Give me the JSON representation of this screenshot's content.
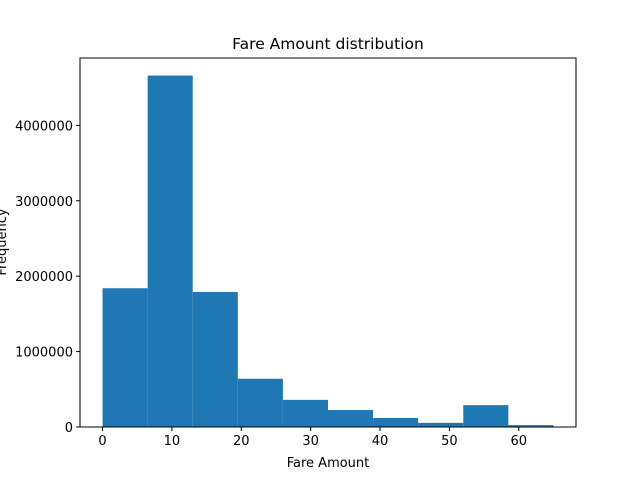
{
  "chart_data": {
    "type": "bar",
    "title": "Fare Amount distribution",
    "xlabel": "Fare Amount",
    "ylabel": "Frequency",
    "bins": [
      {
        "start": 0.0,
        "end": 6.5,
        "value": 1840000
      },
      {
        "start": 6.5,
        "end": 13.0,
        "value": 4660000
      },
      {
        "start": 13.0,
        "end": 19.5,
        "value": 1790000
      },
      {
        "start": 19.5,
        "end": 26.0,
        "value": 640000
      },
      {
        "start": 26.0,
        "end": 32.5,
        "value": 360000
      },
      {
        "start": 32.5,
        "end": 39.0,
        "value": 225000
      },
      {
        "start": 39.0,
        "end": 45.5,
        "value": 120000
      },
      {
        "start": 45.5,
        "end": 52.0,
        "value": 55000
      },
      {
        "start": 52.0,
        "end": 58.5,
        "value": 290000
      },
      {
        "start": 58.5,
        "end": 65.0,
        "value": 25000
      }
    ],
    "xlim": [
      -3.25,
      68.25
    ],
    "ylim": [
      0,
      4893000
    ],
    "xticks": [
      0,
      10,
      20,
      30,
      40,
      50,
      60
    ],
    "xtick_labels": [
      "0",
      "10",
      "20",
      "30",
      "40",
      "50",
      "60"
    ],
    "yticks": [
      0,
      1000000,
      2000000,
      3000000,
      4000000
    ],
    "ytick_labels": [
      "0",
      "1000000",
      "2000000",
      "3000000",
      "4000000"
    ],
    "grid": false,
    "legend": "none",
    "colors": {
      "bar": "#1f77b4",
      "axes": "#000000",
      "background": "#ffffff"
    }
  }
}
